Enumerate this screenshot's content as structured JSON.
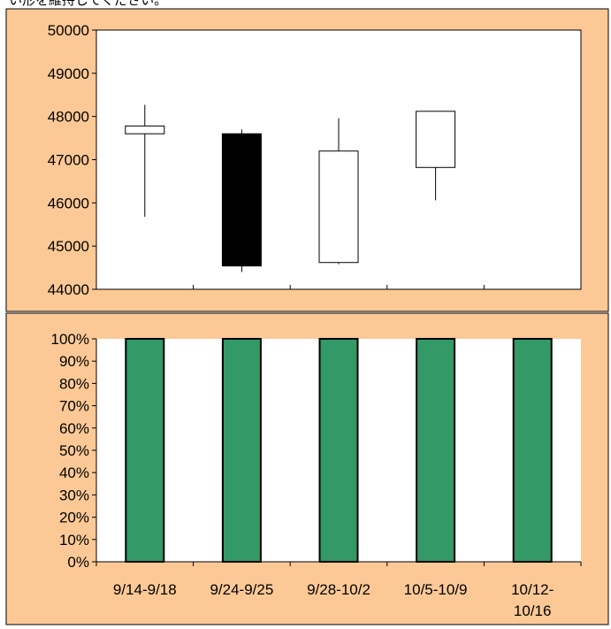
{
  "top_caption": "い形を維持してください。",
  "colors": {
    "panel_bg": "#FCC996",
    "plot_bg": "#FFFFFF",
    "candle_up": "#FFFFFF",
    "candle_down": "#000000",
    "bar_fill": "#339966",
    "stroke": "#000000"
  },
  "chart_data": [
    {
      "type": "candlestick",
      "title": "",
      "xlabel": "",
      "ylabel": "",
      "ylim": [
        44000,
        50000
      ],
      "y_ticks": [
        "50000",
        "49000",
        "48000",
        "47000",
        "46000",
        "45000",
        "44000"
      ],
      "grid": false,
      "legend": "none",
      "categories": [
        "9/14-9/18",
        "9/24-9/25",
        "9/28-10/2",
        "10/5-10/9",
        "10/12-10/16"
      ],
      "candles": [
        {
          "open": 47600,
          "high": 48270,
          "low": 45680,
          "close": 47780
        },
        {
          "open": 47600,
          "high": 47700,
          "low": 44400,
          "close": 44540
        },
        {
          "open": 44620,
          "high": 47960,
          "low": 44580,
          "close": 47200
        },
        {
          "open": 46820,
          "high": 48120,
          "low": 46060,
          "close": 48120
        },
        null
      ]
    },
    {
      "type": "bar",
      "title": "",
      "xlabel": "",
      "ylabel": "",
      "ylim": [
        0,
        100
      ],
      "y_ticks": [
        "100%",
        "90%",
        "80%",
        "70%",
        "60%",
        "50%",
        "40%",
        "30%",
        "20%",
        "10%",
        "0%"
      ],
      "grid": false,
      "legend": "none",
      "categories": [
        "9/14-9/18",
        "9/24-9/25",
        "9/28-10/2",
        "10/5-10/9",
        "10/12-10/16"
      ],
      "category_lines": [
        [
          "9/14-9/18"
        ],
        [
          "9/24-9/25"
        ],
        [
          "9/28-10/2"
        ],
        [
          "10/5-10/9"
        ],
        [
          "10/12-",
          "10/16"
        ]
      ],
      "values": [
        100,
        100,
        100,
        100,
        100
      ]
    }
  ]
}
